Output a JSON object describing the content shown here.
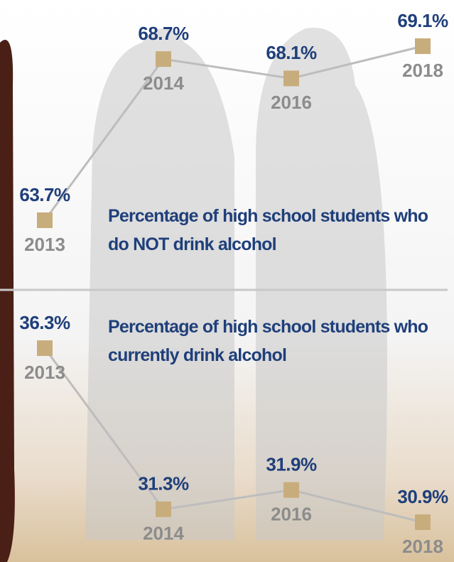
{
  "chart_data": [
    {
      "type": "line",
      "title": "Percentage of high school students who do NOT drink alcohol",
      "categories": [
        "2013",
        "2014",
        "2016",
        "2018"
      ],
      "values": [
        63.7,
        68.7,
        68.1,
        69.1
      ],
      "value_labels": [
        "63.7%",
        "68.7%",
        "68.1%",
        "69.1%"
      ],
      "color": "#c8ad7c"
    },
    {
      "type": "line",
      "title": "Percentage of high school students who currently drink alcohol",
      "categories": [
        "2013",
        "2014",
        "2016",
        "2018"
      ],
      "values": [
        36.3,
        31.3,
        31.9,
        30.9
      ],
      "value_labels": [
        "36.3%",
        "31.3%",
        "31.9%",
        "30.9%"
      ],
      "color": "#c8ad7c"
    }
  ]
}
